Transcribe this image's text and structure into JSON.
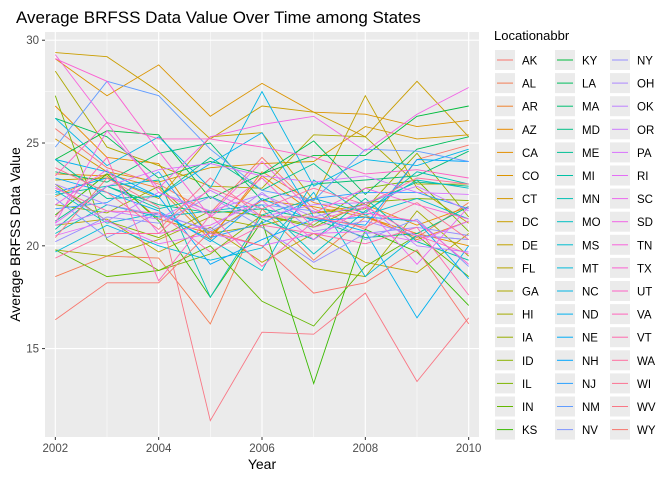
{
  "chart_data": {
    "type": "line",
    "title": "Average BRFSS Data Value Over Time among States",
    "xlabel": "Year",
    "ylabel": "Average BRFSS Data Value",
    "xlim": [
      2001.8,
      2010.2
    ],
    "ylim": [
      10.7,
      30.4
    ],
    "x_ticks": [
      2002,
      2004,
      2006,
      2008,
      2010
    ],
    "x_tick_labels": [
      "2002",
      "2004",
      "2006",
      "2008",
      "2010"
    ],
    "y_ticks": [
      15,
      20,
      25,
      30
    ],
    "y_tick_labels": [
      "15",
      "20",
      "25",
      "30"
    ],
    "grid": true,
    "legend_title": "Locationabbr",
    "legend_position": "right",
    "x": [
      2002,
      2003,
      2004,
      2005,
      2006,
      2007,
      2008,
      2009,
      2010
    ],
    "series": [
      {
        "name": "AK",
        "color": "#F8766D",
        "values": [
          25.7,
          23.8,
          23.0,
          21.6,
          24.3,
          21.8,
          20.8,
          24.2,
          24.9
        ]
      },
      {
        "name": "AL",
        "color": "#F47D55",
        "values": [
          18.5,
          19.5,
          19.4,
          16.2,
          21.8,
          19.3,
          21.4,
          20.4,
          22.1
        ]
      },
      {
        "name": "AR",
        "color": "#EF8230",
        "values": [
          22.4,
          23.5,
          22.8,
          20.3,
          23.6,
          22.1,
          21.5,
          20.3,
          21.2
        ]
      },
      {
        "name": "AZ",
        "color": "#E98A00",
        "values": [
          26.8,
          24.3,
          24.0,
          20.4,
          23.4,
          21.6,
          22.0,
          21.0,
          21.9
        ]
      },
      {
        "name": "CA",
        "color": "#E38F00",
        "values": [
          23.5,
          23.4,
          21.3,
          20.6,
          22.2,
          21.9,
          21.4,
          20.6,
          20.0
        ]
      },
      {
        "name": "CO",
        "color": "#DC9400",
        "values": [
          29.1,
          27.3,
          28.8,
          26.3,
          27.9,
          26.5,
          26.4,
          25.8,
          26.1
        ]
      },
      {
        "name": "CT",
        "color": "#D49800",
        "values": [
          25.2,
          23.6,
          23.1,
          23.8,
          24.0,
          24.1,
          25.8,
          25.2,
          25.4
        ]
      },
      {
        "name": "DC",
        "color": "#CA9E00",
        "values": [
          29.4,
          29.2,
          27.5,
          25.2,
          26.8,
          26.5,
          25.3,
          28.0,
          25.3
        ]
      },
      {
        "name": "DE",
        "color": "#C2A200",
        "values": [
          23.2,
          23.3,
          22.3,
          25.3,
          25.5,
          22.2,
          27.3,
          22.8,
          21.1
        ]
      },
      {
        "name": "FL",
        "color": "#B8A500",
        "values": [
          21.0,
          21.3,
          19.7,
          20.9,
          19.2,
          20.6,
          19.2,
          18.7,
          20.6
        ]
      },
      {
        "name": "GA",
        "color": "#ADA800",
        "values": [
          28.5,
          24.8,
          23.9,
          22.9,
          22.8,
          25.4,
          25.3,
          23.0,
          23.0
        ]
      },
      {
        "name": "HI",
        "color": "#A3AB00",
        "values": [
          19.8,
          19.5,
          20.3,
          21.4,
          20.9,
          18.9,
          18.5,
          21.7,
          19.5
        ]
      },
      {
        "name": "IA",
        "color": "#97AE00",
        "values": [
          22.0,
          21.6,
          22.9,
          20.6,
          21.0,
          21.6,
          21.8,
          24.5,
          21.4
        ]
      },
      {
        "name": "ID",
        "color": "#8AB200",
        "values": [
          23.0,
          21.2,
          20.4,
          21.7,
          21.5,
          20.9,
          22.1,
          22.3,
          22.2
        ]
      },
      {
        "name": "IL",
        "color": "#7DB500",
        "values": [
          27.3,
          20.3,
          18.8,
          19.6,
          21.5,
          21.0,
          22.8,
          23.2,
          20.7
        ]
      },
      {
        "name": "IN",
        "color": "#64B800",
        "values": [
          19.8,
          18.5,
          18.8,
          20.0,
          17.3,
          16.1,
          19.0,
          20.5,
          18.5
        ]
      },
      {
        "name": "KS",
        "color": "#39BA00",
        "values": [
          21.5,
          23.5,
          21.2,
          17.5,
          21.2,
          13.3,
          20.8,
          19.7,
          17.1
        ]
      },
      {
        "name": "KY",
        "color": "#00BB3E",
        "values": [
          24.2,
          25.6,
          25.4,
          22.3,
          23.5,
          24.4,
          24.4,
          26.3,
          26.8
        ]
      },
      {
        "name": "LA",
        "color": "#00BD5C",
        "values": [
          26.2,
          25.3,
          23.3,
          24.1,
          23.5,
          25.1,
          22.5,
          24.7,
          25.3
        ]
      },
      {
        "name": "MA",
        "color": "#00BE72",
        "values": [
          23.6,
          23.1,
          24.5,
          25.0,
          22.2,
          23.0,
          23.2,
          23.4,
          24.6
        ]
      },
      {
        "name": "MD",
        "color": "#00BF85",
        "values": [
          21.2,
          22.9,
          22.0,
          21.6,
          21.8,
          21.3,
          20.4,
          20.6,
          21.9
        ]
      },
      {
        "name": "ME",
        "color": "#00C096",
        "values": [
          24.2,
          22.3,
          22.4,
          24.3,
          22.7,
          24.0,
          22.0,
          23.1,
          22.9
        ]
      },
      {
        "name": "MI",
        "color": "#00C1A6",
        "values": [
          20.8,
          22.9,
          21.8,
          22.4,
          21.3,
          20.3,
          22.3,
          20.2,
          19.3
        ]
      },
      {
        "name": "MN",
        "color": "#00C0B5",
        "values": [
          22.5,
          22.9,
          23.2,
          17.5,
          21.5,
          22.3,
          21.6,
          23.6,
          23.0
        ]
      },
      {
        "name": "MO",
        "color": "#00BFC3",
        "values": [
          20.6,
          22.0,
          21.4,
          21.7,
          22.0,
          19.6,
          21.7,
          23.2,
          22.8
        ]
      },
      {
        "name": "MS",
        "color": "#00BDD0",
        "values": [
          22.7,
          21.1,
          21.6,
          20.3,
          18.8,
          23.2,
          21.5,
          22.3,
          21.3
        ]
      },
      {
        "name": "MT",
        "color": "#00BADC",
        "values": [
          19.7,
          21.0,
          20.0,
          19.3,
          19.9,
          22.6,
          18.5,
          20.5,
          20.3
        ]
      },
      {
        "name": "NC",
        "color": "#00B6E6",
        "values": [
          26.2,
          23.9,
          25.3,
          22.8,
          27.5,
          22.9,
          24.2,
          23.9,
          24.7
        ]
      },
      {
        "name": "ND",
        "color": "#00B1EF",
        "values": [
          24.2,
          23.6,
          22.4,
          24.0,
          25.5,
          21.4,
          20.7,
          16.5,
          20.0
        ]
      },
      {
        "name": "NE",
        "color": "#00ACF7",
        "values": [
          23.3,
          22.6,
          21.7,
          20.2,
          22.3,
          21.2,
          21.4,
          21.2,
          18.4
        ]
      },
      {
        "name": "NH",
        "color": "#00A6FD",
        "values": [
          22.6,
          23.3,
          22.4,
          19.1,
          20.3,
          21.3,
          21.0,
          24.2,
          24.1
        ]
      },
      {
        "name": "NJ",
        "color": "#2AA0FF",
        "values": [
          21.8,
          22.1,
          23.6,
          20.4,
          21.1,
          22.3,
          22.6,
          22.6,
          21.8
        ]
      },
      {
        "name": "NM",
        "color": "#619CFF",
        "values": [
          24.8,
          28.0,
          27.3,
          24.7,
          22.7,
          22.2,
          24.7,
          24.6,
          24.1
        ]
      },
      {
        "name": "NV",
        "color": "#7F96FF",
        "values": [
          22.3,
          20.4,
          21.6,
          20.7,
          22.0,
          21.7,
          20.3,
          21.3,
          19.0
        ]
      },
      {
        "name": "NY",
        "color": "#978FFF",
        "values": [
          20.2,
          21.4,
          21.1,
          22.4,
          20.9,
          19.2,
          20.6,
          20.9,
          20.5
        ]
      },
      {
        "name": "OH",
        "color": "#AC88FF",
        "values": [
          23.0,
          22.0,
          21.5,
          20.8,
          22.6,
          20.7,
          21.2,
          20.5,
          20.3
        ]
      },
      {
        "name": "OK",
        "color": "#BD81FF",
        "values": [
          22.9,
          21.2,
          22.6,
          21.7,
          22.5,
          21.4,
          22.0,
          20.0,
          19.7
        ]
      },
      {
        "name": "OR",
        "color": "#CC7AFF",
        "values": [
          21.0,
          21.7,
          21.3,
          22.7,
          21.4,
          22.0,
          22.1,
          22.9,
          21.7
        ]
      },
      {
        "name": "PA",
        "color": "#D973FD",
        "values": [
          21.1,
          22.9,
          23.7,
          24.0,
          23.4,
          23.1,
          23.4,
          22.6,
          22.5
        ]
      },
      {
        "name": "RI",
        "color": "#E36EF6",
        "values": [
          20.5,
          21.2,
          20.1,
          20.6,
          20.0,
          20.6,
          20.7,
          20.2,
          21.2
        ]
      },
      {
        "name": "SC",
        "color": "#EB69EF",
        "values": [
          22.0,
          23.7,
          20.6,
          21.0,
          22.2,
          20.3,
          21.9,
          19.1,
          21.9
        ]
      },
      {
        "name": "SD",
        "color": "#F264E6",
        "values": [
          21.1,
          25.6,
          22.8,
          25.3,
          25.9,
          26.3,
          24.6,
          26.4,
          27.7
        ]
      },
      {
        "name": "TN",
        "color": "#F763DC",
        "values": [
          29.3,
          26.0,
          22.6,
          21.5,
          24.1,
          21.6,
          22.8,
          22.0,
          21.3
        ]
      },
      {
        "name": "TX",
        "color": "#FB61D2",
        "values": [
          29.1,
          28.0,
          24.6,
          21.4,
          23.3,
          20.9,
          21.6,
          21.2,
          19.1
        ]
      },
      {
        "name": "UT",
        "color": "#FD62C6",
        "values": [
          23.4,
          26.0,
          25.2,
          25.2,
          24.8,
          24.3,
          23.5,
          23.7,
          23.3
        ]
      },
      {
        "name": "VA",
        "color": "#FF65BA",
        "values": [
          21.4,
          24.3,
          18.3,
          21.5,
          19.0,
          21.2,
          21.9,
          20.5,
          19.6
        ]
      },
      {
        "name": "VT",
        "color": "#FF6AAD",
        "values": [
          22.8,
          21.7,
          21.6,
          19.7,
          21.0,
          20.6,
          20.1,
          20.9,
          17.6
        ]
      },
      {
        "name": "WA",
        "color": "#FF6FA0",
        "values": [
          19.4,
          20.6,
          20.6,
          22.8,
          21.8,
          22.8,
          22.0,
          23.3,
          23.0
        ]
      },
      {
        "name": "WI",
        "color": "#FC7392",
        "values": [
          23.8,
          22.6,
          20.8,
          23.3,
          21.4,
          21.4,
          20.9,
          22.1,
          20.3
        ]
      },
      {
        "name": "WV",
        "color": "#F97785",
        "values": [
          20.4,
          23.3,
          21.9,
          11.5,
          15.8,
          15.7,
          17.7,
          13.4,
          16.5
        ]
      },
      {
        "name": "WY",
        "color": "#F8766D",
        "values": [
          16.4,
          18.2,
          18.2,
          20.7,
          20.0,
          17.7,
          18.2,
          19.8,
          16.2
        ]
      }
    ]
  }
}
